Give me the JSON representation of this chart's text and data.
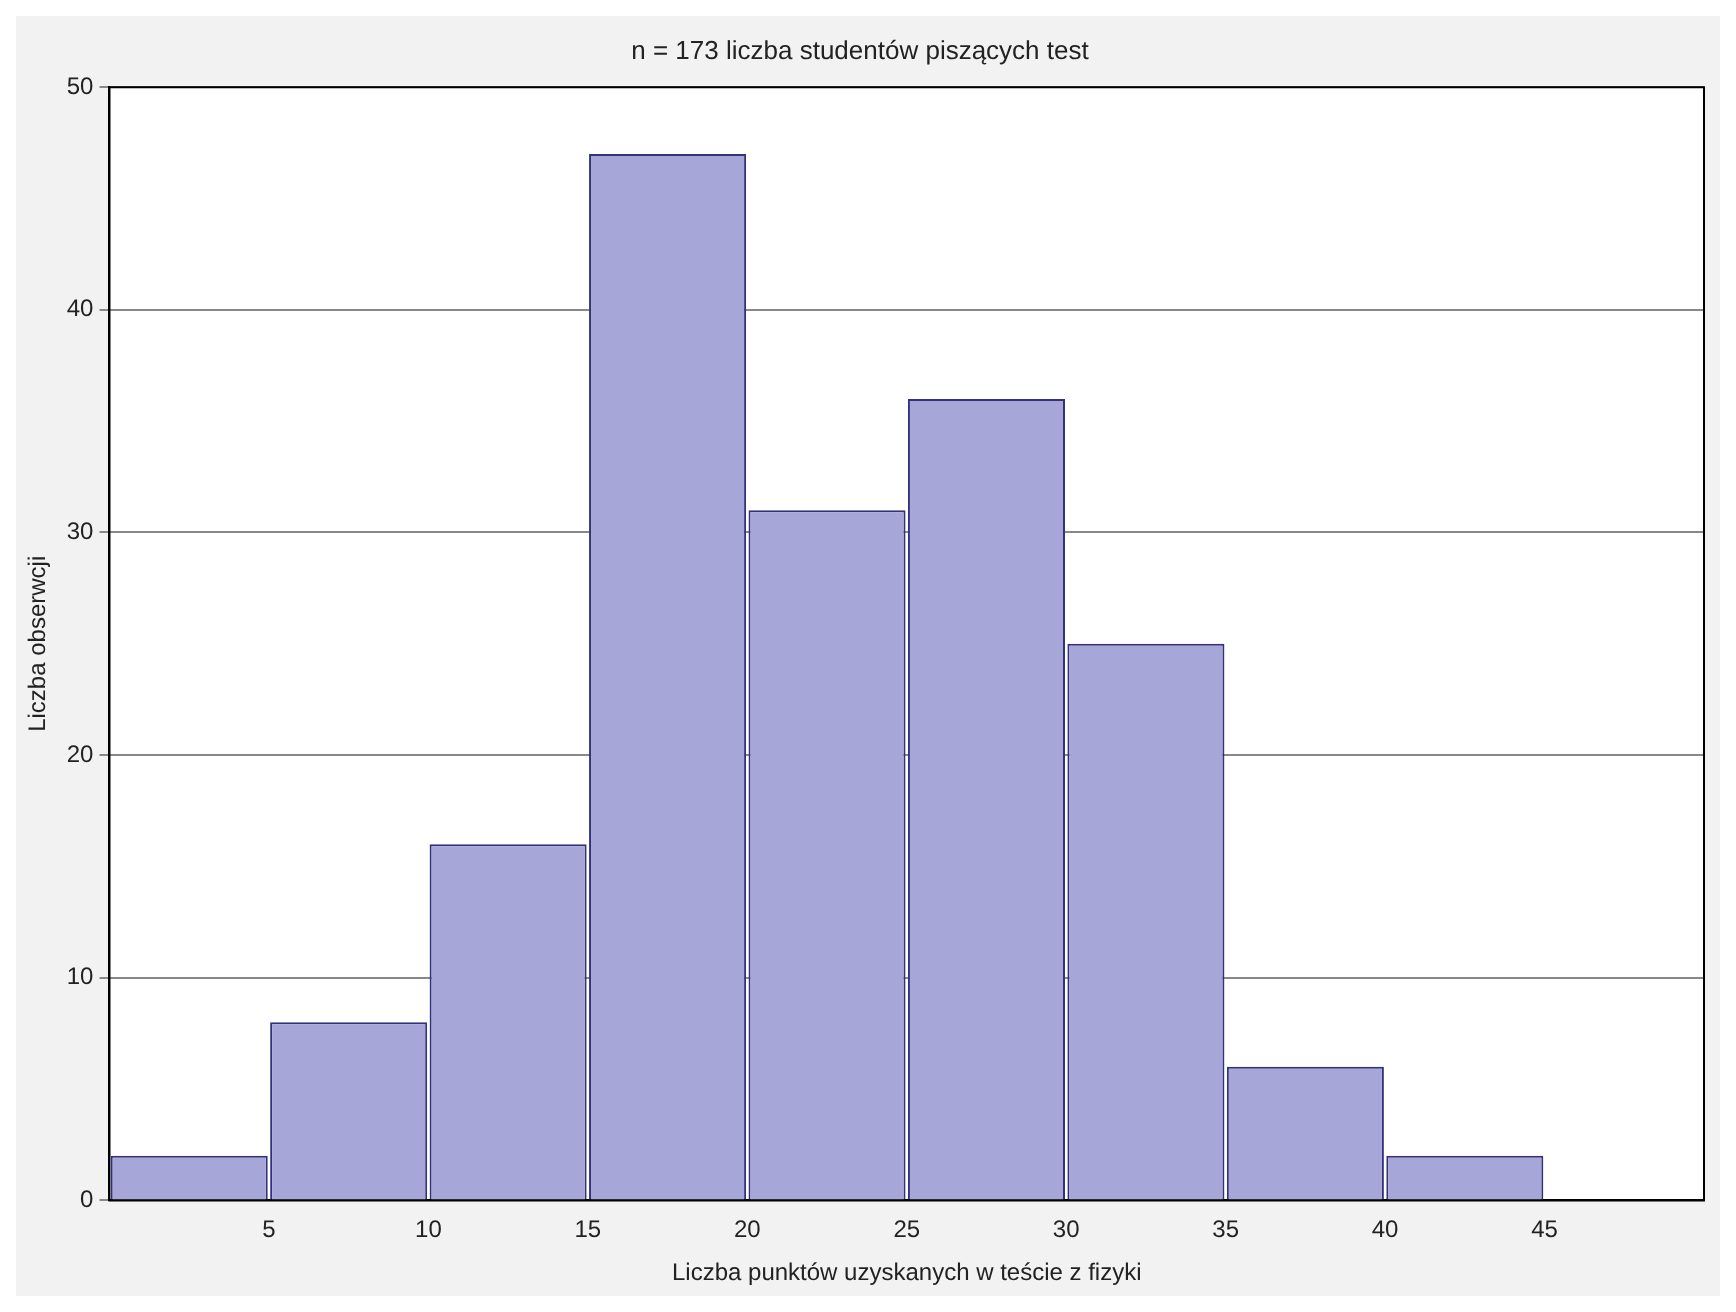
{
  "chart_data": {
    "type": "histogram",
    "title": "n = 173 liczba studentów piszących test",
    "xlabel": "Liczba punktów uzyskanych w teście z fizyki",
    "ylabel": "Liczba obserwcji",
    "bins": [
      0,
      5,
      10,
      15,
      20,
      25,
      30,
      35,
      40,
      45
    ],
    "values": [
      2,
      8,
      16,
      47,
      31,
      36,
      25,
      6,
      2
    ],
    "color": "#a6a6d8",
    "xlim": [
      0,
      50
    ],
    "xticks": [
      5,
      10,
      15,
      20,
      25,
      30,
      35,
      40,
      45
    ],
    "ylim": [
      0,
      50
    ],
    "yticks": [
      0,
      10,
      20,
      30,
      40,
      50
    ],
    "grid": "y"
  }
}
